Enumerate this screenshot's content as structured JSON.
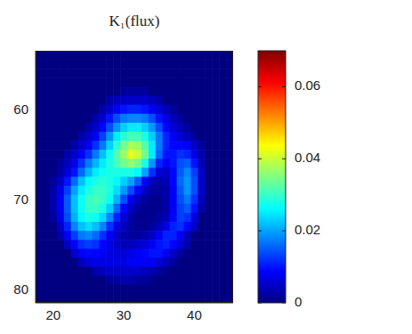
{
  "chart_data": {
    "type": "heatmap",
    "title": "K₁(flux)",
    "x": [
      18,
      19,
      20,
      21,
      22,
      23,
      24,
      25,
      26,
      27,
      28,
      29,
      30,
      31,
      32,
      33,
      34,
      35,
      36,
      37,
      38,
      39,
      40,
      41,
      42,
      43,
      44,
      45
    ],
    "y": [
      54,
      55,
      56,
      57,
      58,
      59,
      60,
      61,
      62,
      63,
      64,
      65,
      66,
      67,
      68,
      69,
      70,
      71,
      72,
      73,
      74,
      75,
      76,
      77,
      78,
      79,
      80,
      81
    ],
    "xlim": [
      17.5,
      45.5
    ],
    "xticks": [
      20,
      30,
      40
    ],
    "ylim": [
      81.5,
      53.5
    ],
    "yticks": [
      60,
      70,
      80
    ],
    "colorbar": {
      "range": [
        0,
        0.07
      ],
      "ticks": [
        0,
        0.02,
        0.04,
        0.06
      ]
    },
    "cells": [
      [
        0,
        0,
        0,
        0,
        0,
        0,
        0,
        0,
        0,
        0,
        0,
        0,
        0,
        0,
        0,
        0,
        0,
        0,
        0,
        0,
        0,
        0,
        0,
        0,
        0,
        0,
        0,
        0
      ],
      [
        0,
        0,
        0,
        0,
        0,
        0,
        0,
        0,
        0,
        0,
        0,
        0,
        0,
        0,
        0,
        0,
        0,
        0,
        0,
        0,
        0,
        0,
        0,
        0,
        0,
        0,
        0,
        0
      ],
      [
        0,
        0,
        0,
        0,
        0,
        0,
        0,
        0,
        0,
        0,
        0,
        0,
        0,
        0,
        0,
        0,
        0,
        0,
        0,
        0,
        0,
        0,
        0,
        0,
        0,
        0,
        0,
        0
      ],
      [
        0,
        0,
        0,
        0,
        0,
        0,
        0,
        0,
        0,
        0,
        0,
        0,
        0,
        0,
        0,
        0,
        0,
        0,
        0,
        0,
        0,
        0,
        0,
        0,
        0,
        0,
        0,
        0
      ],
      [
        0,
        0,
        0,
        0,
        0,
        0,
        0,
        0,
        0,
        0,
        0,
        0,
        0.002,
        0.002,
        0.002,
        0.002,
        0,
        0,
        0,
        0,
        0,
        0,
        0,
        0,
        0,
        0,
        0,
        0
      ],
      [
        0,
        0,
        0,
        0,
        0,
        0,
        0,
        0,
        0,
        0,
        0.003,
        0.004,
        0.005,
        0.005,
        0.005,
        0.005,
        0.004,
        0.003,
        0,
        0,
        0,
        0,
        0,
        0,
        0,
        0,
        0,
        0
      ],
      [
        0,
        0,
        0,
        0,
        0,
        0,
        0,
        0,
        0,
        0.003,
        0.005,
        0.008,
        0.01,
        0.011,
        0.011,
        0.01,
        0.008,
        0.006,
        0.004,
        0.002,
        0,
        0,
        0,
        0,
        0,
        0,
        0,
        0
      ],
      [
        0,
        0,
        0,
        0,
        0,
        0,
        0,
        0,
        0.003,
        0.006,
        0.01,
        0.014,
        0.017,
        0.018,
        0.018,
        0.017,
        0.014,
        0.01,
        0.007,
        0.004,
        0.002,
        0,
        0,
        0,
        0,
        0,
        0,
        0
      ],
      [
        0,
        0,
        0,
        0,
        0,
        0,
        0,
        0.003,
        0.005,
        0.009,
        0.014,
        0.019,
        0.023,
        0.025,
        0.025,
        0.023,
        0.019,
        0.014,
        0.009,
        0.006,
        0.004,
        0.002,
        0,
        0,
        0,
        0,
        0,
        0
      ],
      [
        0,
        0,
        0,
        0,
        0,
        0,
        0.003,
        0.005,
        0.008,
        0.013,
        0.019,
        0.025,
        0.029,
        0.031,
        0.031,
        0.028,
        0.023,
        0.017,
        0.011,
        0.008,
        0.006,
        0.004,
        0.002,
        0,
        0,
        0,
        0,
        0
      ],
      [
        0,
        0,
        0,
        0,
        0,
        0.003,
        0.005,
        0.008,
        0.012,
        0.017,
        0.023,
        0.029,
        0.034,
        0.038,
        0.037,
        0.032,
        0.025,
        0.017,
        0.011,
        0.009,
        0.009,
        0.008,
        0.005,
        0.002,
        0,
        0,
        0,
        0
      ],
      [
        0,
        0,
        0,
        0,
        0.003,
        0.005,
        0.008,
        0.012,
        0.017,
        0.022,
        0.027,
        0.032,
        0.037,
        0.042,
        0.04,
        0.034,
        0.025,
        0.016,
        0.01,
        0.01,
        0.012,
        0.011,
        0.007,
        0.003,
        0,
        0,
        0,
        0
      ],
      [
        0,
        0,
        0,
        0.002,
        0.004,
        0.007,
        0.012,
        0.017,
        0.021,
        0.025,
        0.028,
        0.031,
        0.034,
        0.036,
        0.034,
        0.028,
        0.019,
        0.011,
        0.008,
        0.01,
        0.014,
        0.015,
        0.01,
        0.004,
        0,
        0,
        0,
        0
      ],
      [
        0,
        0,
        0,
        0.003,
        0.006,
        0.01,
        0.016,
        0.021,
        0.025,
        0.027,
        0.028,
        0.028,
        0.028,
        0.028,
        0.026,
        0.02,
        0.012,
        0.006,
        0.005,
        0.009,
        0.015,
        0.018,
        0.013,
        0.005,
        0,
        0,
        0,
        0
      ],
      [
        0,
        0,
        0.002,
        0.005,
        0.01,
        0.016,
        0.022,
        0.026,
        0.028,
        0.029,
        0.028,
        0.026,
        0.023,
        0.02,
        0.015,
        0.009,
        0.004,
        0.003,
        0.004,
        0.009,
        0.016,
        0.019,
        0.014,
        0.005,
        0,
        0,
        0,
        0
      ],
      [
        0,
        0,
        0.003,
        0.007,
        0.013,
        0.02,
        0.025,
        0.028,
        0.03,
        0.03,
        0.028,
        0.024,
        0.019,
        0.014,
        0.009,
        0.005,
        0.002,
        0.002,
        0.003,
        0.008,
        0.015,
        0.019,
        0.014,
        0.005,
        0,
        0,
        0,
        0
      ],
      [
        0,
        0,
        0.003,
        0.008,
        0.015,
        0.022,
        0.027,
        0.03,
        0.031,
        0.03,
        0.027,
        0.021,
        0.014,
        0.008,
        0.004,
        0.002,
        0.001,
        0.001,
        0.003,
        0.008,
        0.014,
        0.017,
        0.012,
        0.004,
        0,
        0,
        0,
        0
      ],
      [
        0,
        0,
        0.003,
        0.008,
        0.015,
        0.022,
        0.027,
        0.03,
        0.03,
        0.028,
        0.023,
        0.016,
        0.009,
        0.005,
        0.002,
        0.001,
        0.001,
        0.001,
        0.003,
        0.008,
        0.013,
        0.015,
        0.01,
        0.003,
        0,
        0,
        0,
        0
      ],
      [
        0,
        0,
        0.002,
        0.007,
        0.014,
        0.021,
        0.026,
        0.028,
        0.027,
        0.024,
        0.018,
        0.011,
        0.006,
        0.003,
        0.001,
        0.001,
        0.001,
        0.002,
        0.004,
        0.009,
        0.013,
        0.012,
        0.007,
        0,
        0,
        0,
        0,
        0
      ],
      [
        0,
        0,
        0,
        0.005,
        0.011,
        0.018,
        0.022,
        0.024,
        0.022,
        0.018,
        0.012,
        0.007,
        0.004,
        0.002,
        0.001,
        0.001,
        0.002,
        0.004,
        0.007,
        0.011,
        0.012,
        0.009,
        0.005,
        0,
        0,
        0,
        0,
        0
      ],
      [
        0,
        0,
        0,
        0.003,
        0.008,
        0.013,
        0.017,
        0.018,
        0.016,
        0.012,
        0.008,
        0.005,
        0.003,
        0.002,
        0.002,
        0.003,
        0.005,
        0.008,
        0.011,
        0.011,
        0.008,
        0.004,
        0,
        0,
        0,
        0,
        0,
        0
      ],
      [
        0,
        0,
        0,
        0,
        0.005,
        0.009,
        0.012,
        0.013,
        0.012,
        0.009,
        0.007,
        0.005,
        0.004,
        0.004,
        0.005,
        0.006,
        0.008,
        0.01,
        0.011,
        0.009,
        0.006,
        0.003,
        0,
        0,
        0,
        0,
        0,
        0
      ],
      [
        0,
        0,
        0,
        0,
        0,
        0.005,
        0.008,
        0.009,
        0.009,
        0.008,
        0.007,
        0.006,
        0.006,
        0.007,
        0.008,
        0.009,
        0.01,
        0.01,
        0.008,
        0.005,
        0.002,
        0,
        0,
        0,
        0,
        0,
        0,
        0
      ],
      [
        0,
        0,
        0,
        0,
        0,
        0,
        0.004,
        0.006,
        0.007,
        0.007,
        0.007,
        0.007,
        0.007,
        0.008,
        0.008,
        0.008,
        0.008,
        0.006,
        0.004,
        0.002,
        0,
        0,
        0,
        0,
        0,
        0,
        0,
        0
      ],
      [
        0,
        0,
        0,
        0,
        0,
        0,
        0,
        0,
        0.003,
        0.004,
        0.005,
        0.005,
        0.005,
        0.005,
        0.005,
        0.004,
        0.003,
        0.002,
        0.001,
        0,
        0,
        0,
        0,
        0,
        0,
        0,
        0,
        0
      ],
      [
        0,
        0,
        0,
        0,
        0,
        0,
        0,
        0,
        0,
        0,
        0.002,
        0.002,
        0.003,
        0.003,
        0.002,
        0.002,
        0.001,
        0,
        0,
        0,
        0,
        0,
        0,
        0,
        0,
        0,
        0,
        0
      ],
      [
        0,
        0,
        0,
        0,
        0,
        0,
        0,
        0,
        0,
        0,
        0,
        0,
        0,
        0,
        0,
        0,
        0,
        0,
        0,
        0,
        0,
        0,
        0,
        0,
        0,
        0,
        0,
        0
      ],
      [
        0,
        0,
        0,
        0,
        0,
        0,
        0,
        0,
        0,
        0,
        0,
        0,
        0,
        0,
        0,
        0,
        0,
        0,
        0,
        0,
        0,
        0,
        0,
        0,
        0,
        0,
        0,
        0
      ]
    ]
  }
}
